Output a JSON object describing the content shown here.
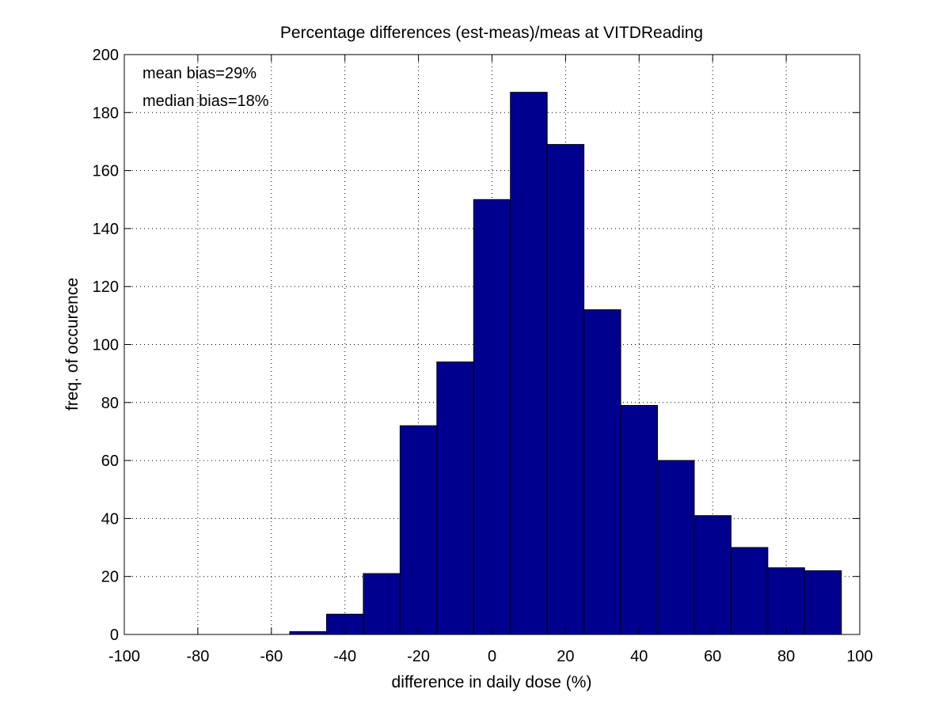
{
  "chart_data": {
    "type": "bar",
    "title": "Percentage differences (est-meas)/meas at VITDReading",
    "xlabel": "difference in daily dose (%)",
    "ylabel": "freq. of occurence",
    "xlim": [
      -100,
      100
    ],
    "ylim": [
      0,
      200
    ],
    "xticks": [
      -100,
      -80,
      -60,
      -40,
      -20,
      0,
      20,
      40,
      60,
      80,
      100
    ],
    "yticks": [
      0,
      20,
      40,
      60,
      80,
      100,
      120,
      140,
      160,
      180,
      200
    ],
    "grid": true,
    "bar_color": "#00008f",
    "bin_edges": [
      -55,
      -45,
      -35,
      -25,
      -15,
      -5,
      5,
      15,
      25,
      35,
      45,
      55,
      65,
      75,
      85,
      95
    ],
    "values": [
      1,
      7,
      21,
      72,
      94,
      150,
      187,
      169,
      112,
      79,
      60,
      41,
      30,
      23,
      22
    ],
    "annotations": [
      "mean bias=29%",
      "median bias=18%"
    ]
  }
}
